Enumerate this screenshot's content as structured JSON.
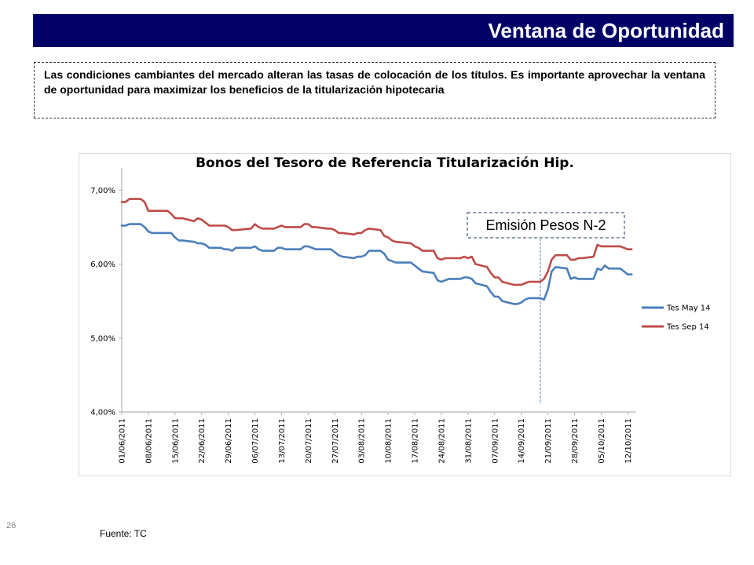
{
  "page": {
    "title": "Ventana de Oportunidad",
    "intro": "Las condiciones cambiantes del mercado alteran las tasas de colocación de los títulos. Es importante aprovechar la ventana de oportunidad para maximizar los beneficios de la titularización hipotecaria",
    "page_number": "26",
    "source": "Fuente: TC"
  },
  "colors": {
    "title_bar": "#000066",
    "series_1": "#4A7EBB",
    "series_2": "#BE4B48",
    "annotation_line": "#4A7EBB"
  },
  "chart_data": {
    "type": "line",
    "title": "Bonos del Tesoro de Referencia Titularización Hip.",
    "xlabel": "",
    "ylabel": "",
    "ylim": [
      0.04,
      0.073
    ],
    "yticks": [
      "4,00%",
      "5,00%",
      "6,00%",
      "7,00%"
    ],
    "ytick_values": [
      0.04,
      0.05,
      0.06,
      0.07
    ],
    "x_range": [
      "2011-06-01",
      "2011-10-14"
    ],
    "xtick_labels": [
      "01/06/2011",
      "08/06/2011",
      "15/06/2011",
      "22/06/2011",
      "29/06/2011",
      "06/07/2011",
      "13/07/2011",
      "20/07/2011",
      "27/07/2011",
      "03/08/2011",
      "10/08/2011",
      "17/08/2011",
      "24/08/2011",
      "31/08/2011",
      "07/09/2011",
      "14/09/2011",
      "21/09/2011",
      "28/09/2011",
      "05/10/2011",
      "12/10/2011"
    ],
    "xtick_dates": [
      "2011-06-01",
      "2011-06-08",
      "2011-06-15",
      "2011-06-22",
      "2011-06-29",
      "2011-07-06",
      "2011-07-13",
      "2011-07-20",
      "2011-07-27",
      "2011-08-03",
      "2011-08-10",
      "2011-08-17",
      "2011-08-24",
      "2011-08-31",
      "2011-09-07",
      "2011-09-14",
      "2011-09-21",
      "2011-09-28",
      "2011-10-05",
      "2011-10-12"
    ],
    "legend_position": "right",
    "grid": false,
    "series": [
      {
        "name": "Tes May 14",
        "color": "#4A7EBB",
        "points": [
          [
            "2011-06-01",
            0.0652
          ],
          [
            "2011-06-02",
            0.0652
          ],
          [
            "2011-06-03",
            0.0654
          ],
          [
            "2011-06-06",
            0.0654
          ],
          [
            "2011-06-07",
            0.065
          ],
          [
            "2011-06-08",
            0.0644
          ],
          [
            "2011-06-09",
            0.0642
          ],
          [
            "2011-06-10",
            0.0642
          ],
          [
            "2011-06-13",
            0.0642
          ],
          [
            "2011-06-14",
            0.0642
          ],
          [
            "2011-06-15",
            0.0636
          ],
          [
            "2011-06-16",
            0.0632
          ],
          [
            "2011-06-17",
            0.0632
          ],
          [
            "2011-06-20",
            0.063
          ],
          [
            "2011-06-21",
            0.0628
          ],
          [
            "2011-06-22",
            0.0628
          ],
          [
            "2011-06-23",
            0.0626
          ],
          [
            "2011-06-24",
            0.0622
          ],
          [
            "2011-06-27",
            0.0622
          ],
          [
            "2011-06-28",
            0.062
          ],
          [
            "2011-06-29",
            0.062
          ],
          [
            "2011-06-30",
            0.0618
          ],
          [
            "2011-07-01",
            0.0622
          ],
          [
            "2011-07-05",
            0.0622
          ],
          [
            "2011-07-06",
            0.0624
          ],
          [
            "2011-07-07",
            0.062
          ],
          [
            "2011-07-08",
            0.0618
          ],
          [
            "2011-07-11",
            0.0618
          ],
          [
            "2011-07-12",
            0.0622
          ],
          [
            "2011-07-13",
            0.0622
          ],
          [
            "2011-07-14",
            0.062
          ],
          [
            "2011-07-15",
            0.062
          ],
          [
            "2011-07-18",
            0.062
          ],
          [
            "2011-07-19",
            0.0624
          ],
          [
            "2011-07-20",
            0.0624
          ],
          [
            "2011-07-21",
            0.0622
          ],
          [
            "2011-07-22",
            0.062
          ],
          [
            "2011-07-25",
            0.062
          ],
          [
            "2011-07-26",
            0.062
          ],
          [
            "2011-07-27",
            0.0616
          ],
          [
            "2011-07-28",
            0.0612
          ],
          [
            "2011-07-29",
            0.061
          ],
          [
            "2011-08-01",
            0.0608
          ],
          [
            "2011-08-02",
            0.061
          ],
          [
            "2011-08-03",
            0.061
          ],
          [
            "2011-08-04",
            0.0612
          ],
          [
            "2011-08-05",
            0.0618
          ],
          [
            "2011-08-08",
            0.0618
          ],
          [
            "2011-08-09",
            0.0614
          ],
          [
            "2011-08-10",
            0.0606
          ],
          [
            "2011-08-11",
            0.0604
          ],
          [
            "2011-08-12",
            0.0602
          ],
          [
            "2011-08-16",
            0.0602
          ],
          [
            "2011-08-17",
            0.0598
          ],
          [
            "2011-08-18",
            0.0594
          ],
          [
            "2011-08-19",
            0.059
          ],
          [
            "2011-08-22",
            0.0588
          ],
          [
            "2011-08-23",
            0.0578
          ],
          [
            "2011-08-24",
            0.0576
          ],
          [
            "2011-08-25",
            0.0578
          ],
          [
            "2011-08-26",
            0.058
          ],
          [
            "2011-08-29",
            0.058
          ],
          [
            "2011-08-30",
            0.0582
          ],
          [
            "2011-08-31",
            0.0582
          ],
          [
            "2011-09-01",
            0.058
          ],
          [
            "2011-09-02",
            0.0574
          ],
          [
            "2011-09-05",
            0.057
          ],
          [
            "2011-09-06",
            0.0562
          ],
          [
            "2011-09-07",
            0.0556
          ],
          [
            "2011-09-08",
            0.0556
          ],
          [
            "2011-09-09",
            0.055
          ],
          [
            "2011-09-12",
            0.0546
          ],
          [
            "2011-09-13",
            0.0546
          ],
          [
            "2011-09-14",
            0.0548
          ],
          [
            "2011-09-15",
            0.0552
          ],
          [
            "2011-09-16",
            0.0554
          ],
          [
            "2011-09-19",
            0.0554
          ],
          [
            "2011-09-20",
            0.0552
          ],
          [
            "2011-09-21",
            0.0566
          ],
          [
            "2011-09-22",
            0.059
          ],
          [
            "2011-09-23",
            0.0596
          ],
          [
            "2011-09-26",
            0.0594
          ],
          [
            "2011-09-27",
            0.058
          ],
          [
            "2011-09-28",
            0.0582
          ],
          [
            "2011-09-29",
            0.058
          ],
          [
            "2011-09-30",
            0.058
          ],
          [
            "2011-10-03",
            0.058
          ],
          [
            "2011-10-04",
            0.0594
          ],
          [
            "2011-10-05",
            0.0592
          ],
          [
            "2011-10-06",
            0.0598
          ],
          [
            "2011-10-07",
            0.0594
          ],
          [
            "2011-10-10",
            0.0594
          ],
          [
            "2011-10-11",
            0.059
          ],
          [
            "2011-10-12",
            0.0586
          ],
          [
            "2011-10-13",
            0.0586
          ]
        ]
      },
      {
        "name": "Tes Sep 14",
        "color": "#BE4B48",
        "points": [
          [
            "2011-06-01",
            0.0684
          ],
          [
            "2011-06-02",
            0.0684
          ],
          [
            "2011-06-03",
            0.0688
          ],
          [
            "2011-06-06",
            0.0688
          ],
          [
            "2011-06-07",
            0.0684
          ],
          [
            "2011-06-08",
            0.0672
          ],
          [
            "2011-06-09",
            0.0672
          ],
          [
            "2011-06-10",
            0.0672
          ],
          [
            "2011-06-13",
            0.0672
          ],
          [
            "2011-06-14",
            0.0668
          ],
          [
            "2011-06-15",
            0.0662
          ],
          [
            "2011-06-16",
            0.0662
          ],
          [
            "2011-06-17",
            0.0662
          ],
          [
            "2011-06-20",
            0.0658
          ],
          [
            "2011-06-21",
            0.0662
          ],
          [
            "2011-06-22",
            0.066
          ],
          [
            "2011-06-23",
            0.0656
          ],
          [
            "2011-06-24",
            0.0652
          ],
          [
            "2011-06-27",
            0.0652
          ],
          [
            "2011-06-28",
            0.0652
          ],
          [
            "2011-06-29",
            0.065
          ],
          [
            "2011-06-30",
            0.0646
          ],
          [
            "2011-07-01",
            0.0646
          ],
          [
            "2011-07-05",
            0.0648
          ],
          [
            "2011-07-06",
            0.0654
          ],
          [
            "2011-07-07",
            0.065
          ],
          [
            "2011-07-08",
            0.0648
          ],
          [
            "2011-07-11",
            0.0648
          ],
          [
            "2011-07-12",
            0.065
          ],
          [
            "2011-07-13",
            0.0652
          ],
          [
            "2011-07-14",
            0.065
          ],
          [
            "2011-07-15",
            0.065
          ],
          [
            "2011-07-18",
            0.065
          ],
          [
            "2011-07-19",
            0.0654
          ],
          [
            "2011-07-20",
            0.0654
          ],
          [
            "2011-07-21",
            0.065
          ],
          [
            "2011-07-22",
            0.065
          ],
          [
            "2011-07-25",
            0.0648
          ],
          [
            "2011-07-26",
            0.0648
          ],
          [
            "2011-07-27",
            0.0646
          ],
          [
            "2011-07-28",
            0.0642
          ],
          [
            "2011-07-29",
            0.0642
          ],
          [
            "2011-08-01",
            0.064
          ],
          [
            "2011-08-02",
            0.0642
          ],
          [
            "2011-08-03",
            0.0642
          ],
          [
            "2011-08-04",
            0.0646
          ],
          [
            "2011-08-05",
            0.0648
          ],
          [
            "2011-08-08",
            0.0646
          ],
          [
            "2011-08-09",
            0.0638
          ],
          [
            "2011-08-10",
            0.0636
          ],
          [
            "2011-08-11",
            0.0632
          ],
          [
            "2011-08-12",
            0.063
          ],
          [
            "2011-08-16",
            0.0628
          ],
          [
            "2011-08-17",
            0.0624
          ],
          [
            "2011-08-18",
            0.0622
          ],
          [
            "2011-08-19",
            0.0618
          ],
          [
            "2011-08-22",
            0.0618
          ],
          [
            "2011-08-23",
            0.0608
          ],
          [
            "2011-08-24",
            0.0606
          ],
          [
            "2011-08-25",
            0.0608
          ],
          [
            "2011-08-26",
            0.0608
          ],
          [
            "2011-08-29",
            0.0608
          ],
          [
            "2011-08-30",
            0.061
          ],
          [
            "2011-08-31",
            0.0608
          ],
          [
            "2011-09-01",
            0.061
          ],
          [
            "2011-09-02",
            0.06
          ],
          [
            "2011-09-05",
            0.0596
          ],
          [
            "2011-09-06",
            0.0588
          ],
          [
            "2011-09-07",
            0.0582
          ],
          [
            "2011-09-08",
            0.0582
          ],
          [
            "2011-09-09",
            0.0576
          ],
          [
            "2011-09-12",
            0.0572
          ],
          [
            "2011-09-13",
            0.0572
          ],
          [
            "2011-09-14",
            0.0572
          ],
          [
            "2011-09-15",
            0.0574
          ],
          [
            "2011-09-16",
            0.0576
          ],
          [
            "2011-09-19",
            0.0576
          ],
          [
            "2011-09-20",
            0.058
          ],
          [
            "2011-09-21",
            0.059
          ],
          [
            "2011-09-22",
            0.0606
          ],
          [
            "2011-09-23",
            0.0612
          ],
          [
            "2011-09-26",
            0.0612
          ],
          [
            "2011-09-27",
            0.0606
          ],
          [
            "2011-09-28",
            0.0606
          ],
          [
            "2011-09-29",
            0.0608
          ],
          [
            "2011-09-30",
            0.0608
          ],
          [
            "2011-10-03",
            0.061
          ],
          [
            "2011-10-04",
            0.0626
          ],
          [
            "2011-10-05",
            0.0624
          ],
          [
            "2011-10-06",
            0.0624
          ],
          [
            "2011-10-07",
            0.0624
          ],
          [
            "2011-10-10",
            0.0624
          ],
          [
            "2011-10-11",
            0.0622
          ],
          [
            "2011-10-12",
            0.062
          ],
          [
            "2011-10-13",
            0.062
          ]
        ]
      }
    ],
    "annotations": [
      {
        "label": "Emisión Pesos N-2",
        "x": "2011-09-19"
      }
    ]
  }
}
